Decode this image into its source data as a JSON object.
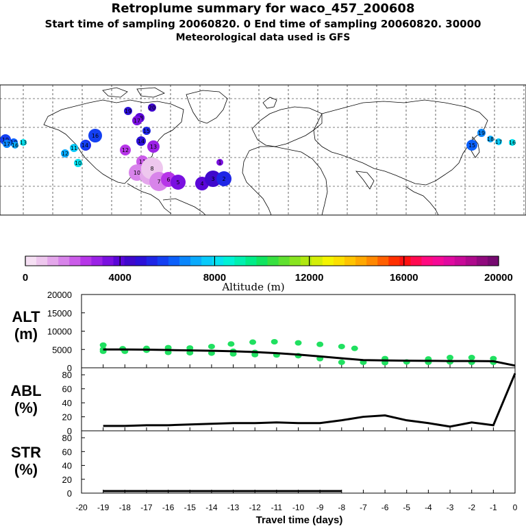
{
  "header": {
    "title": "Retroplume summary for waco_457_200608",
    "sampling": "Start time of sampling 20060820.    0     End time of sampling 20060820. 30000",
    "met": "Meteorological data used is GFS"
  },
  "colorbar": {
    "label": "Altitude (m)",
    "ticks": [
      "0",
      "4000",
      "8000",
      "12000",
      "16000",
      "20000"
    ],
    "colors": [
      "#f6e0f4",
      "#eec7ee",
      "#e4a7eb",
      "#d884ea",
      "#cb5ce9",
      "#b736e8",
      "#9b22e6",
      "#7a10e0",
      "#5a06d8",
      "#3f08cc",
      "#2c10d8",
      "#1f26e6",
      "#1440f2",
      "#0c60fa",
      "#0a86fb",
      "#0aaafc",
      "#08cafa",
      "#06e2f0",
      "#00f2d6",
      "#00f0b0",
      "#00ec88",
      "#10e460",
      "#38e040",
      "#60e030",
      "#88e420",
      "#b0e810",
      "#d4ee08",
      "#f4f400",
      "#fce000",
      "#ffc400",
      "#ffa800",
      "#ff8800",
      "#ff6000",
      "#ff3000",
      "#ff1010",
      "#ff0a50",
      "#ff0a80",
      "#f50a96",
      "#e00aa0",
      "#c80a98",
      "#ae0a8c",
      "#900a7e",
      "#760a70"
    ]
  },
  "map": {
    "description_markers": "ensemble positions colored by altitude"
  },
  "markers": [
    {
      "label": "20",
      "color": "#3f08cc",
      "r": 6
    },
    {
      "label": "19",
      "color": "#2c10d8",
      "r": 6
    },
    {
      "label": "18",
      "color": "#5a06d8",
      "r": 7
    },
    {
      "label": "17",
      "color": "#7a10e0",
      "r": 7
    },
    {
      "label": "16",
      "color": "#1440f2",
      "r": 10
    },
    {
      "label": "15",
      "color": "#1f26e6",
      "r": 8
    },
    {
      "label": "14",
      "color": "#2c10d8",
      "r": 7
    },
    {
      "label": "13",
      "color": "#9b22e6",
      "r": 9
    },
    {
      "label": "12",
      "color": "#b736e8",
      "r": 8
    },
    {
      "label": "11",
      "color": "#cb5ce9",
      "r": 9
    },
    {
      "label": "10",
      "color": "#d884ea",
      "r": 12
    },
    {
      "label": "9",
      "color": "#e4a7eb",
      "r": 14
    },
    {
      "label": "8",
      "color": "#eec7ee",
      "r": 16
    },
    {
      "label": "7",
      "color": "#d884ea",
      "r": 14
    },
    {
      "label": "6",
      "color": "#b736e8",
      "r": 11
    },
    {
      "label": "5",
      "color": "#7a10e0",
      "r": 11
    },
    {
      "label": "4",
      "color": "#5a06d8",
      "r": 10
    },
    {
      "label": "3",
      "color": "#3f08cc",
      "r": 12
    },
    {
      "label": "2",
      "color": "#1f26e6",
      "r": 11
    },
    {
      "label": "1",
      "color": "#7a10e0",
      "r": 5
    },
    {
      "label": "19",
      "color": "#0a86fb",
      "r": 6
    },
    {
      "label": "18",
      "color": "#0aaafc",
      "r": 5
    },
    {
      "label": "17",
      "color": "#08cafa",
      "r": 5
    },
    {
      "label": "16",
      "color": "#06e2f0",
      "r": 5
    },
    {
      "label": "15",
      "color": "#0c60fa",
      "r": 8
    },
    {
      "label": "14",
      "color": "#1440f2",
      "r": 7
    },
    {
      "label": "12",
      "color": "#0aaafc",
      "r": 6
    },
    {
      "label": "11",
      "color": "#08cafa",
      "r": 6
    },
    {
      "label": "13",
      "color": "#06e2f0",
      "r": 5
    },
    {
      "label": "10",
      "color": "#06e2f0",
      "r": 6
    },
    {
      "label": "19",
      "color": "#1440f2",
      "r": 8
    },
    {
      "label": "18",
      "color": "#0c60fa",
      "r": 6
    },
    {
      "label": "17",
      "color": "#0a86fb",
      "r": 6
    },
    {
      "label": "16",
      "color": "#0aaafc",
      "r": 5
    },
    {
      "label": "15",
      "color": "#1f26e6",
      "r": 6
    }
  ],
  "chart_data": [
    {
      "type": "scatter",
      "panel": "ALT",
      "ylabel": "ALT",
      "yunits": "(m)",
      "ylim": [
        0,
        20000
      ],
      "yticks": [
        "20000",
        "15000",
        "10000",
        "5000",
        "0"
      ],
      "xlim": [
        -20,
        0
      ],
      "series": [
        {
          "name": "median altitude",
          "x": [
            -19,
            -18,
            -17,
            -16,
            -15,
            -14,
            -13,
            -12,
            -11,
            -10,
            -9,
            -8,
            -7,
            -6,
            -5,
            -4,
            -3,
            -2,
            -1,
            0
          ],
          "values": [
            5000,
            5000,
            4950,
            4850,
            4750,
            4650,
            4500,
            4300,
            4000,
            3600,
            3100,
            2600,
            2100,
            2000,
            1950,
            1900,
            1850,
            1850,
            1800,
            600
          ]
        },
        {
          "name": "plume particles",
          "points": [
            [
              -19,
              5000
            ],
            [
              -19,
              4500
            ],
            [
              -19,
              6200
            ],
            [
              -18.1,
              5200
            ],
            [
              -18,
              4500
            ],
            [
              -17,
              5300
            ],
            [
              -17,
              4800
            ],
            [
              -16,
              5500
            ],
            [
              -16,
              4200
            ],
            [
              -15,
              5400
            ],
            [
              -15,
              4100
            ],
            [
              -14,
              5800
            ],
            [
              -14,
              4000
            ],
            [
              -13.1,
              6500
            ],
            [
              -13,
              4500
            ],
            [
              -13,
              3800
            ],
            [
              -12.1,
              7000
            ],
            [
              -12,
              4200
            ],
            [
              -12,
              3600
            ],
            [
              -11.1,
              7100
            ],
            [
              -11,
              3500
            ],
            [
              -10,
              3300
            ],
            [
              -10,
              6800
            ],
            [
              -9,
              2500
            ],
            [
              -9,
              6400
            ],
            [
              -8,
              1500
            ],
            [
              -8,
              5800
            ],
            [
              -7,
              1500
            ],
            [
              -6,
              1400
            ],
            [
              -6,
              2500
            ],
            [
              -5,
              1600
            ],
            [
              -4,
              1500
            ],
            [
              -4,
              2400
            ],
            [
              -3,
              1600
            ],
            [
              -3,
              2800
            ],
            [
              -2,
              1500
            ],
            [
              -2,
              2800
            ],
            [
              -1,
              1500
            ],
            [
              -1,
              2500
            ],
            [
              -7.4,
              5300
            ]
          ]
        }
      ]
    },
    {
      "type": "line",
      "panel": "ABL",
      "ylabel": "ABL",
      "yunits": "(%)",
      "ylim": [
        0,
        90
      ],
      "yticks": [
        "80",
        "60",
        "40",
        "20",
        "0"
      ],
      "xlim": [
        -20,
        0
      ],
      "x": [
        -19,
        -18,
        -17,
        -16,
        -15,
        -14,
        -13,
        -12,
        -11,
        -10,
        -9,
        -8,
        -7,
        -6,
        -5,
        -4,
        -3,
        -2,
        -1,
        0
      ],
      "values": [
        7,
        7,
        8,
        8,
        9,
        10,
        11,
        11,
        12,
        11,
        11,
        15,
        20,
        22,
        15,
        11,
        6,
        12,
        8,
        82
      ]
    },
    {
      "type": "line",
      "panel": "STR",
      "ylabel": "STR",
      "yunits": "(%)",
      "ylim": [
        0,
        90
      ],
      "yticks": [
        "80",
        "60",
        "40",
        "20",
        "0"
      ],
      "xlim": [
        -20,
        0
      ],
      "x": [
        -19,
        -18,
        -17,
        -16,
        -15,
        -14,
        -13,
        -12,
        -11,
        -10,
        -9,
        -8
      ],
      "values": [
        3,
        3,
        3,
        3,
        3,
        3,
        3,
        3,
        3,
        3,
        3,
        3
      ]
    }
  ],
  "xaxis": {
    "ticks": [
      "-20",
      "-19",
      "-18",
      "-17",
      "-16",
      "-15",
      "-14",
      "-13",
      "-12",
      "-11",
      "-10",
      "-9",
      "-8",
      "-7",
      "-6",
      "-5",
      "-4",
      "-3",
      "-2",
      "-1",
      "0"
    ],
    "label": "Travel time (days)"
  }
}
